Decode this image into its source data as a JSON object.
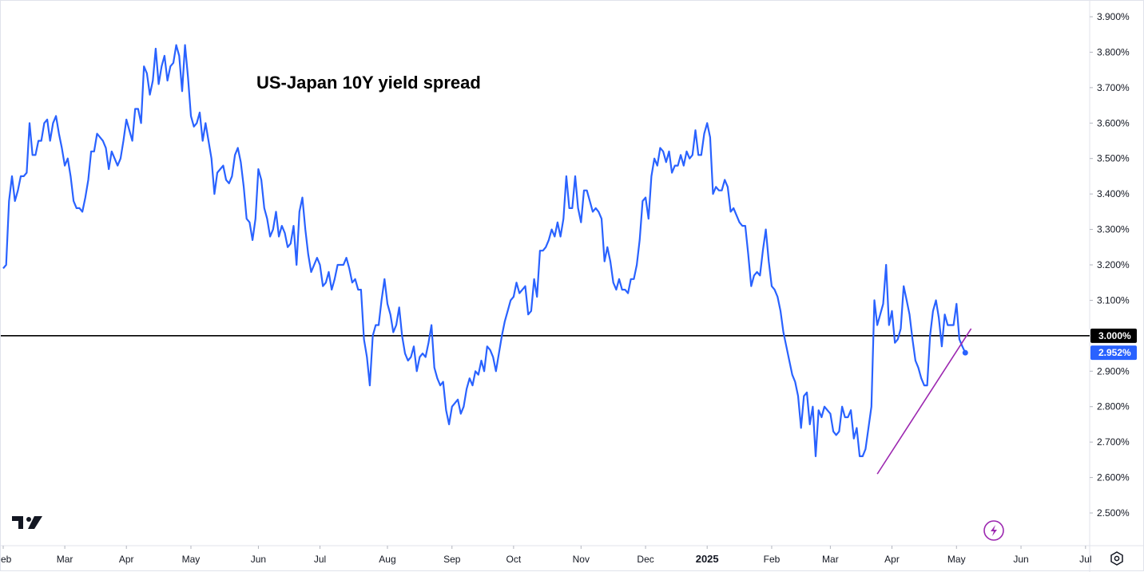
{
  "chart_data": {
    "type": "line",
    "title": "US-Japan 10Y yield spread",
    "y_unit": "%",
    "ylim": [
      2.43,
      3.95
    ],
    "y_ticks": [
      "3.900%",
      "3.800%",
      "3.700%",
      "3.600%",
      "3.500%",
      "3.400%",
      "3.300%",
      "3.200%",
      "3.100%",
      "2.900%",
      "2.800%",
      "2.700%",
      "2.600%",
      "2.500%"
    ],
    "y_tick_values": [
      3.9,
      3.8,
      3.7,
      3.6,
      3.5,
      3.4,
      3.3,
      3.2,
      3.1,
      2.9,
      2.8,
      2.7,
      2.6,
      2.5
    ],
    "x_ticks": [
      "Feb",
      "Mar",
      "Apr",
      "May",
      "Jun",
      "Jul",
      "Aug",
      "Sep",
      "Oct",
      "Nov",
      "Dec",
      "2025",
      "Feb",
      "Mar",
      "Apr",
      "May",
      "Jun",
      "Jul"
    ],
    "x_tick_bold": [
      false,
      false,
      false,
      false,
      false,
      false,
      false,
      false,
      false,
      false,
      false,
      true,
      false,
      false,
      false,
      false,
      false,
      false
    ],
    "x_tick_index": [
      0,
      21,
      42,
      64,
      87,
      108,
      131,
      153,
      174,
      197,
      219,
      240,
      262,
      282,
      303,
      325,
      347,
      369
    ],
    "series": [
      {
        "color": "#2962ff",
        "last_value": 2.952,
        "last_value_label": "2.952%",
        "values": [
          3.19,
          3.2,
          3.38,
          3.45,
          3.38,
          3.41,
          3.45,
          3.45,
          3.46,
          3.6,
          3.51,
          3.51,
          3.55,
          3.55,
          3.6,
          3.61,
          3.55,
          3.6,
          3.62,
          3.57,
          3.53,
          3.48,
          3.5,
          3.45,
          3.38,
          3.36,
          3.36,
          3.35,
          3.39,
          3.44,
          3.52,
          3.52,
          3.57,
          3.56,
          3.55,
          3.53,
          3.47,
          3.52,
          3.5,
          3.48,
          3.5,
          3.55,
          3.61,
          3.58,
          3.55,
          3.64,
          3.64,
          3.6,
          3.76,
          3.74,
          3.68,
          3.72,
          3.81,
          3.71,
          3.76,
          3.79,
          3.72,
          3.76,
          3.77,
          3.82,
          3.79,
          3.69,
          3.82,
          3.73,
          3.62,
          3.59,
          3.6,
          3.63,
          3.55,
          3.6,
          3.55,
          3.5,
          3.4,
          3.46,
          3.47,
          3.48,
          3.44,
          3.43,
          3.45,
          3.51,
          3.53,
          3.49,
          3.42,
          3.33,
          3.32,
          3.27,
          3.33,
          3.47,
          3.44,
          3.36,
          3.33,
          3.28,
          3.3,
          3.35,
          3.28,
          3.31,
          3.29,
          3.25,
          3.26,
          3.31,
          3.2,
          3.35,
          3.39,
          3.3,
          3.23,
          3.18,
          3.2,
          3.22,
          3.2,
          3.14,
          3.15,
          3.18,
          3.13,
          3.16,
          3.2,
          3.2,
          3.2,
          3.22,
          3.19,
          3.15,
          3.16,
          3.13,
          3.13,
          2.99,
          2.94,
          2.86,
          3.0,
          3.03,
          3.03,
          3.1,
          3.16,
          3.09,
          3.06,
          3.01,
          3.03,
          3.08,
          3.0,
          2.95,
          2.93,
          2.94,
          2.97,
          2.9,
          2.94,
          2.95,
          2.94,
          2.98,
          3.03,
          2.91,
          2.88,
          2.86,
          2.87,
          2.79,
          2.75,
          2.8,
          2.81,
          2.82,
          2.78,
          2.8,
          2.85,
          2.88,
          2.86,
          2.9,
          2.89,
          2.93,
          2.9,
          2.97,
          2.96,
          2.94,
          2.9,
          2.95,
          3.0,
          3.04,
          3.07,
          3.1,
          3.11,
          3.15,
          3.12,
          3.13,
          3.14,
          3.06,
          3.07,
          3.16,
          3.11,
          3.24,
          3.24,
          3.25,
          3.27,
          3.3,
          3.28,
          3.32,
          3.28,
          3.33,
          3.45,
          3.36,
          3.36,
          3.45,
          3.36,
          3.32,
          3.41,
          3.41,
          3.38,
          3.35,
          3.36,
          3.35,
          3.33,
          3.21,
          3.25,
          3.21,
          3.15,
          3.13,
          3.16,
          3.13,
          3.13,
          3.12,
          3.16,
          3.16,
          3.2,
          3.27,
          3.38,
          3.39,
          3.33,
          3.45,
          3.5,
          3.48,
          3.53,
          3.52,
          3.49,
          3.52,
          3.46,
          3.48,
          3.48,
          3.51,
          3.48,
          3.52,
          3.5,
          3.51,
          3.58,
          3.51,
          3.51,
          3.57,
          3.6,
          3.56,
          3.4,
          3.42,
          3.41,
          3.41,
          3.44,
          3.42,
          3.35,
          3.36,
          3.34,
          3.32,
          3.31,
          3.31,
          3.23,
          3.14,
          3.17,
          3.18,
          3.17,
          3.24,
          3.3,
          3.21,
          3.14,
          3.13,
          3.11,
          3.07,
          3.01,
          2.97,
          2.93,
          2.89,
          2.87,
          2.83,
          2.74,
          2.83,
          2.84,
          2.75,
          2.8,
          2.66,
          2.79,
          2.77,
          2.8,
          2.79,
          2.78,
          2.73,
          2.72,
          2.73,
          2.8,
          2.77,
          2.77,
          2.79,
          2.71,
          2.74,
          2.66,
          2.66,
          2.68,
          2.74,
          2.8,
          3.1,
          3.03,
          3.06,
          3.09,
          3.2,
          3.03,
          3.07,
          2.98,
          2.99,
          3.02,
          3.14,
          3.1,
          3.06,
          2.99,
          2.93,
          2.91,
          2.88,
          2.86,
          2.86,
          3.0,
          3.07,
          3.1,
          3.05,
          2.97,
          3.06,
          3.03,
          3.03,
          3.03,
          3.09,
          2.99,
          2.97,
          2.952
        ]
      }
    ],
    "reference_line": {
      "value": 3.0,
      "label": "3.000%",
      "color": "#000000"
    },
    "trendline": {
      "color": "#9c27b0",
      "start_index": 298,
      "start_value": 2.61,
      "end_index": 330,
      "end_value": 3.02
    },
    "grid": false,
    "legend": "none"
  },
  "icons": {
    "logo": "tradingview-logo-icon",
    "flash": "lightning-bolt-icon",
    "settings": "settings-gear-icon"
  },
  "colors": {
    "line": "#2962ff",
    "trend": "#9c27b0",
    "price_badge": "#2962ff",
    "reference_badge": "#000000",
    "text": "#131722"
  }
}
